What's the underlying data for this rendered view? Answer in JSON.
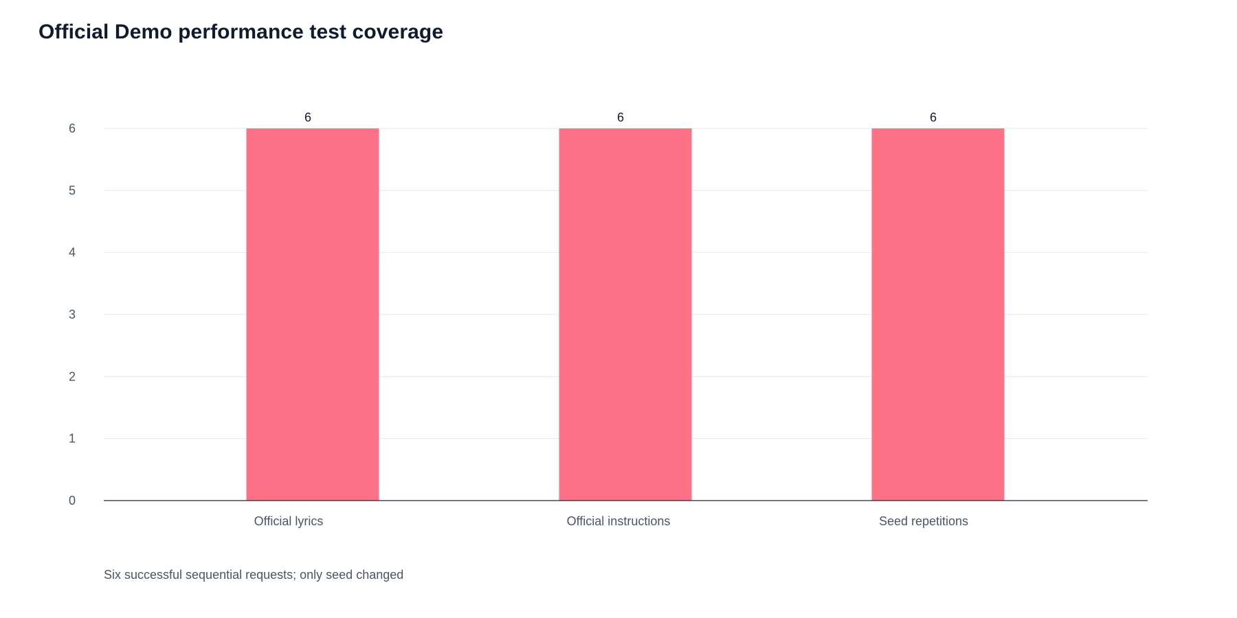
{
  "page": {
    "title": "Official Demo performance test coverage",
    "caption": "Six successful sequential requests; only seed changed"
  },
  "colors": {
    "bar": "#fd7287",
    "grid": "#e5e7eb",
    "axis": "#1e293b",
    "tick_text": "#4a5568",
    "value_text": "#111a2e"
  },
  "chart_data": {
    "type": "bar",
    "categories": [
      "Official lyrics",
      "Official instructions",
      "Seed repetitions"
    ],
    "values": [
      6,
      6,
      6
    ],
    "data_labels": [
      "6",
      "6",
      "6"
    ],
    "title": "Official Demo performance test coverage",
    "xlabel": "",
    "ylabel": "",
    "ylim": [
      0,
      6
    ],
    "yticks": [
      0,
      1,
      2,
      3,
      4,
      5,
      6
    ],
    "grid": true,
    "legend": "none"
  }
}
